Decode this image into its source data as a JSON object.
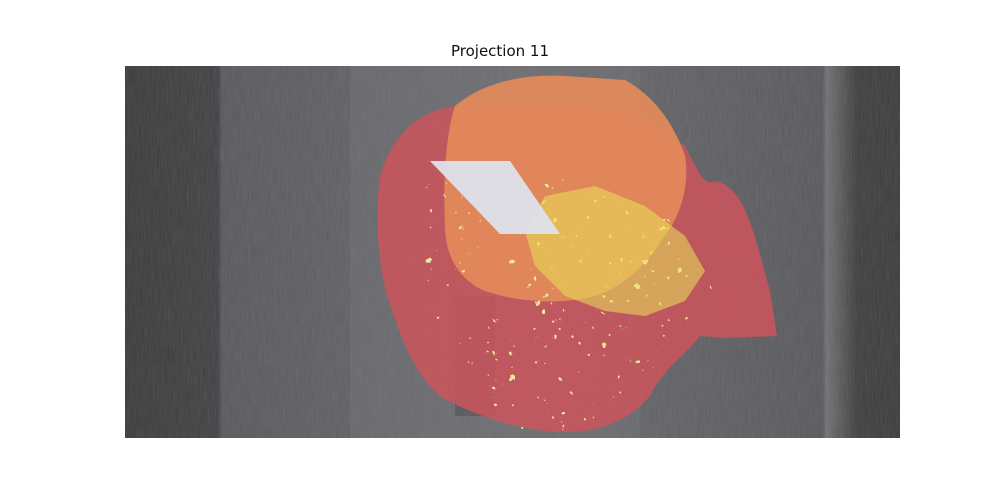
{
  "figure": {
    "title": "Projection 11"
  },
  "image": {
    "description_colors": {
      "background_dark": "#3b393a",
      "background_gray": "#57585c",
      "soft_tissue_gray": "#6d6e72",
      "overlay_red": "#c9545c",
      "overlay_orange": "#e48a5a",
      "overlay_yellow": "#e9e457",
      "bright_region": "#dde2ec"
    }
  }
}
